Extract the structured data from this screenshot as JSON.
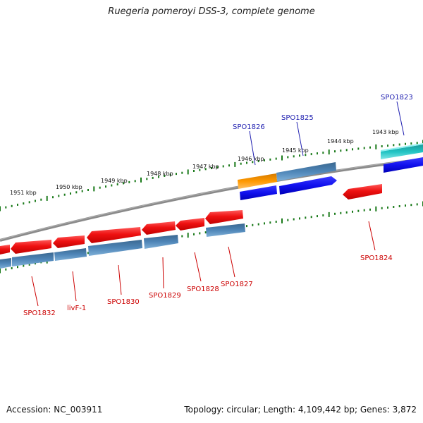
{
  "header": {
    "title": "Ruegeria pomeroyi DSS-3, complete genome"
  },
  "footer": {
    "accession": "Accession: NC_003911",
    "summary": "Topology: circular; Length: 4,109,442 bp; Genes: 3,872"
  },
  "scale": {
    "labels": [
      "1943 kbp",
      "1944 kbp",
      "1945 kbp",
      "1946 kbp",
      "1947 kbp",
      "1948 kbp",
      "1949 kbp",
      "1950 kbp",
      "1951 kbp"
    ]
  },
  "genes": {
    "forward": [
      "SPO1823",
      "SPO1825",
      "SPO1826"
    ],
    "reverse": [
      "SPO1824",
      "SPO1827",
      "SPO1828",
      "SPO1829",
      "SPO1830",
      "livF-1",
      "SPO1832"
    ]
  },
  "colors": {
    "forward_label": "#1f1fb0",
    "reverse_label": "#cc0000",
    "red_feature": "#ee1111",
    "blue_feature": "#1111ee",
    "steel_feature": "#4a7fb0",
    "orange_feature": "#ff9900",
    "cyan_feature": "#22c4c4",
    "backbone": "#808080",
    "tick": "#1a7a1a"
  }
}
